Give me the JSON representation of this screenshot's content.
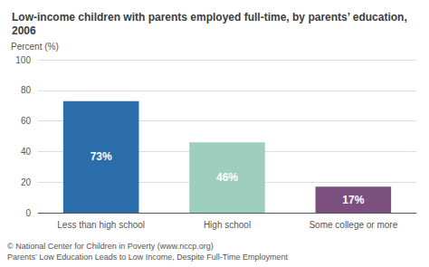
{
  "chart_data": {
    "type": "bar",
    "title": "Low-income children with parents employed full-time, by parents’ education, 2006",
    "ylabel": "Percent (%)",
    "categories": [
      "Less than high school",
      "High school",
      "Some college or more"
    ],
    "values": [
      73,
      46,
      17
    ],
    "value_labels": [
      "73%",
      "46%",
      "17%"
    ],
    "data_labels": true,
    "colors": [
      "#2b6caa",
      "#9ecfbe",
      "#7b4f7e"
    ],
    "ylim": [
      0,
      100
    ],
    "yticks": [
      0,
      20,
      40,
      60,
      80,
      100
    ],
    "grid": true,
    "annotations": [
      "© National Center for Children in Poverty (www.nccp.org)",
      "Parents’ Low Education Leads to Low Income, Despite Full-Time Employment"
    ]
  }
}
